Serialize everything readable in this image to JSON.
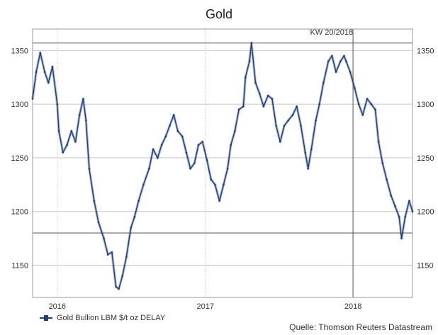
{
  "chart_data": {
    "type": "line",
    "title": "Gold",
    "xlabel": "",
    "ylabel": "",
    "y_range": [
      1120,
      1370
    ],
    "y_ticks": [
      1150,
      1200,
      1250,
      1300,
      1350
    ],
    "x_tick_labels": [
      "2016",
      "2017",
      "2018"
    ],
    "x_range": [
      "2015-11-01",
      "2018-05-28"
    ],
    "x_ticks": [
      "2016-01-01",
      "2017-01-01",
      "2018-01-01"
    ],
    "reference_lines_y": [
      1357,
      1180
    ],
    "reference_line_x": "2018-01-01",
    "reference_line_x_label": "KW 20/2018",
    "grid": "horizontal",
    "series": [
      {
        "name": "Gold Bullion LBM $/t oz DELAY",
        "color": "#1f3f77",
        "points": [
          [
            "2015-11-01",
            1305
          ],
          [
            "2015-11-10",
            1330
          ],
          [
            "2015-11-20",
            1348
          ],
          [
            "2015-12-01",
            1330
          ],
          [
            "2015-12-10",
            1320
          ],
          [
            "2015-12-20",
            1335
          ],
          [
            "2016-01-01",
            1300
          ],
          [
            "2016-01-05",
            1275
          ],
          [
            "2016-01-15",
            1255
          ],
          [
            "2016-01-25",
            1262
          ],
          [
            "2016-02-05",
            1275
          ],
          [
            "2016-02-15",
            1265
          ],
          [
            "2016-02-25",
            1290
          ],
          [
            "2016-03-05",
            1305
          ],
          [
            "2016-03-12",
            1285
          ],
          [
            "2016-03-20",
            1240
          ],
          [
            "2016-04-01",
            1210
          ],
          [
            "2016-04-12",
            1190
          ],
          [
            "2016-04-25",
            1175
          ],
          [
            "2016-05-05",
            1160
          ],
          [
            "2016-05-15",
            1162
          ],
          [
            "2016-05-25",
            1130
          ],
          [
            "2016-06-01",
            1128
          ],
          [
            "2016-06-10",
            1140
          ],
          [
            "2016-06-20",
            1158
          ],
          [
            "2016-07-01",
            1185
          ],
          [
            "2016-07-10",
            1195
          ],
          [
            "2016-07-20",
            1210
          ],
          [
            "2016-08-01",
            1225
          ],
          [
            "2016-08-15",
            1240
          ],
          [
            "2016-08-25",
            1258
          ],
          [
            "2016-09-05",
            1250
          ],
          [
            "2016-09-15",
            1262
          ],
          [
            "2016-09-25",
            1270
          ],
          [
            "2016-10-05",
            1280
          ],
          [
            "2016-10-15",
            1290
          ],
          [
            "2016-10-25",
            1275
          ],
          [
            "2016-11-05",
            1270
          ],
          [
            "2016-11-15",
            1255
          ],
          [
            "2016-11-25",
            1240
          ],
          [
            "2016-12-05",
            1245
          ],
          [
            "2016-12-15",
            1262
          ],
          [
            "2016-12-25",
            1265
          ],
          [
            "2017-01-05",
            1248
          ],
          [
            "2017-01-15",
            1230
          ],
          [
            "2017-01-25",
            1225
          ],
          [
            "2017-02-05",
            1210
          ],
          [
            "2017-02-15",
            1225
          ],
          [
            "2017-02-25",
            1240
          ],
          [
            "2017-03-05",
            1262
          ],
          [
            "2017-03-15",
            1275
          ],
          [
            "2017-03-25",
            1295
          ],
          [
            "2017-04-05",
            1298
          ],
          [
            "2017-04-10",
            1325
          ],
          [
            "2017-04-20",
            1340
          ],
          [
            "2017-04-25",
            1357
          ],
          [
            "2017-05-05",
            1320
          ],
          [
            "2017-05-15",
            1310
          ],
          [
            "2017-05-25",
            1298
          ],
          [
            "2017-06-05",
            1308
          ],
          [
            "2017-06-15",
            1305
          ],
          [
            "2017-06-25",
            1280
          ],
          [
            "2017-07-05",
            1265
          ],
          [
            "2017-07-15",
            1280
          ],
          [
            "2017-07-25",
            1285
          ],
          [
            "2017-08-05",
            1290
          ],
          [
            "2017-08-15",
            1298
          ],
          [
            "2017-08-25",
            1280
          ],
          [
            "2017-09-05",
            1255
          ],
          [
            "2017-09-12",
            1240
          ],
          [
            "2017-09-20",
            1258
          ],
          [
            "2017-10-01",
            1285
          ],
          [
            "2017-10-10",
            1300
          ],
          [
            "2017-10-20",
            1320
          ],
          [
            "2017-11-01",
            1340
          ],
          [
            "2017-11-10",
            1345
          ],
          [
            "2017-11-20",
            1330
          ],
          [
            "2017-12-01",
            1340
          ],
          [
            "2017-12-10",
            1345
          ],
          [
            "2017-12-15",
            1340
          ],
          [
            "2017-12-25",
            1330
          ],
          [
            "2018-01-05",
            1315
          ],
          [
            "2018-01-15",
            1300
          ],
          [
            "2018-01-25",
            1290
          ],
          [
            "2018-02-05",
            1305
          ],
          [
            "2018-02-15",
            1300
          ],
          [
            "2018-02-25",
            1295
          ],
          [
            "2018-03-05",
            1265
          ],
          [
            "2018-03-15",
            1245
          ],
          [
            "2018-03-25",
            1230
          ],
          [
            "2018-04-05",
            1215
          ],
          [
            "2018-04-15",
            1205
          ],
          [
            "2018-04-25",
            1195
          ],
          [
            "2018-05-01",
            1175
          ],
          [
            "2018-05-10",
            1195
          ],
          [
            "2018-05-20",
            1210
          ],
          [
            "2018-05-28",
            1200
          ]
        ]
      }
    ],
    "legend_placement": "bottom-left",
    "source": "Quelle: Thomson Reuters Datastream"
  }
}
